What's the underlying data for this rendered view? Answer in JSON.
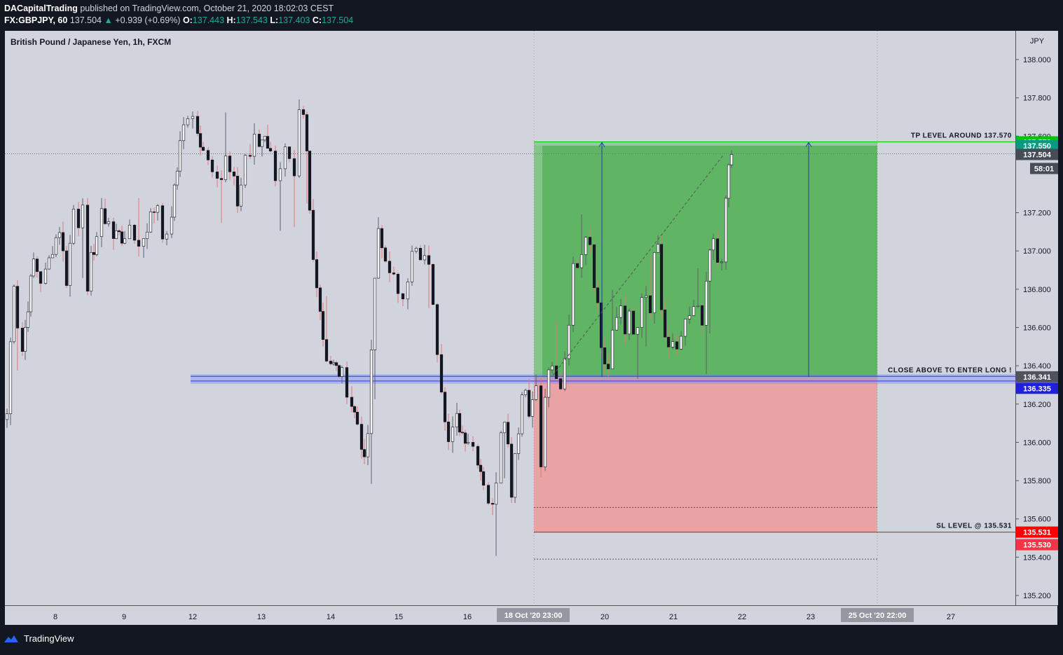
{
  "header": {
    "author": "DACapitalTrading",
    "published": "published on TradingView.com, October 21, 2020 18:02:03 CEST",
    "symbol_tf": "FX:GBPJPY, 60",
    "last": "137.504",
    "change": "+0.939 (+0.69%)",
    "o_label": "O:",
    "o": "137.443",
    "h_label": "H:",
    "h": "137.543",
    "l_label": "L:",
    "l": "137.403",
    "c_label": "C:",
    "c": "137.504"
  },
  "legend": "British Pound / Japanese Yen, 1h, FXCM",
  "price_axis": {
    "currency": "JPY",
    "ticks": [
      "138.000",
      "137.800",
      "137.600",
      "137.200",
      "137.000",
      "136.800",
      "136.600",
      "136.400",
      "136.200",
      "136.000",
      "135.800",
      "135.600",
      "135.400",
      "135.200"
    ]
  },
  "time_axis": {
    "ticks": [
      "8",
      "9",
      "12",
      "13",
      "14",
      "15",
      "16",
      "19",
      "20",
      "21",
      "22",
      "23",
      "26",
      "27"
    ],
    "marker_start": "18 Oct '20  23:00",
    "marker_end": "25 Oct '20  22:00"
  },
  "price_labels": [
    {
      "text": "137.570",
      "color": "#00c800"
    },
    {
      "text": "137.550",
      "color": "#089981"
    },
    {
      "text": "137.504",
      "color": "#474d57"
    },
    {
      "text": "58:01",
      "color": "#474d57"
    },
    {
      "text": "136.341",
      "color": "#50535e"
    },
    {
      "text": "136.335",
      "color": "#1f20d8"
    },
    {
      "text": "135.531",
      "color": "#ff0000"
    },
    {
      "text": "135.530",
      "color": "#f23645"
    }
  ],
  "annotations": {
    "tp": "TP LEVEL AROUND 137.570",
    "entry": "CLOSE ABOVE TO ENTER LONG !",
    "sl": "SL LEVEL @ 135.531"
  },
  "footer": {
    "brand": "TradingView"
  },
  "colors": {
    "up": "#26a69a",
    "down": "#ef5350",
    "bg": "#d1d4dc",
    "profit": "#4caf50",
    "loss": "#ef9a9a",
    "entry_line": "#3f51ff"
  },
  "chart_data": {
    "type": "candlestick",
    "title": "British Pound / Japanese Yen, 1h, FXCM",
    "ylim": [
      135.1,
      138.1
    ],
    "levels": {
      "tp": 137.57,
      "target": 137.55,
      "entry_zone": [
        136.335,
        136.341
      ],
      "stop": 135.531,
      "last": 137.504
    },
    "close_path": [
      [
        0,
        136.15
      ],
      [
        5,
        136.52
      ],
      [
        10,
        136.85
      ],
      [
        15,
        136.62
      ],
      [
        22,
        136.48
      ],
      [
        30,
        136.72
      ],
      [
        38,
        136.95
      ],
      [
        48,
        136.85
      ],
      [
        55,
        136.88
      ],
      [
        65,
        137.02
      ],
      [
        75,
        137.12
      ],
      [
        85,
        136.85
      ],
      [
        95,
        137.22
      ],
      [
        102,
        137.15
      ],
      [
        108,
        137.28
      ],
      [
        115,
        136.75
      ],
      [
        120,
        136.95
      ],
      [
        128,
        137.08
      ],
      [
        135,
        137.18
      ],
      [
        145,
        137.16
      ],
      [
        152,
        137.06
      ],
      [
        160,
        137.12
      ],
      [
        168,
        137.02
      ],
      [
        175,
        137.14
      ],
      [
        182,
        137.08
      ],
      [
        188,
        137.02
      ],
      [
        195,
        137.08
      ],
      [
        205,
        137.18
      ],
      [
        215,
        137.25
      ],
      [
        222,
        137.1
      ],
      [
        228,
        137.05
      ],
      [
        235,
        137.2
      ],
      [
        243,
        137.42
      ],
      [
        247,
        137.6
      ],
      [
        252,
        137.65
      ],
      [
        258,
        137.7
      ],
      [
        265,
        137.68
      ],
      [
        272,
        137.6
      ],
      [
        280,
        137.55
      ],
      [
        287,
        137.48
      ],
      [
        293,
        137.45
      ],
      [
        300,
        137.42
      ],
      [
        306,
        137.38
      ],
      [
        312,
        137.48
      ],
      [
        318,
        137.4
      ],
      [
        324,
        137.35
      ],
      [
        329,
        137.25
      ],
      [
        334,
        137.35
      ],
      [
        340,
        137.5
      ],
      [
        347,
        137.5
      ],
      [
        353,
        137.58
      ],
      [
        360,
        137.55
      ],
      [
        368,
        137.62
      ],
      [
        376,
        137.5
      ],
      [
        383,
        137.4
      ],
      [
        390,
        137.45
      ],
      [
        397,
        137.52
      ],
      [
        403,
        137.45
      ],
      [
        410,
        137.35
      ],
      [
        417,
        137.7
      ],
      [
        423,
        137.68
      ],
      [
        428,
        137.5
      ],
      [
        432,
        137.2
      ],
      [
        437,
        136.95
      ],
      [
        442,
        136.85
      ],
      [
        447,
        136.7
      ],
      [
        451,
        136.55
      ],
      [
        456,
        136.45
      ],
      [
        462,
        136.42
      ],
      [
        470,
        136.38
      ],
      [
        478,
        136.35
      ],
      [
        485,
        136.28
      ],
      [
        492,
        136.2
      ],
      [
        500,
        136.1
      ],
      [
        506,
        136.0
      ],
      [
        510,
        135.88
      ],
      [
        515,
        136.05
      ],
      [
        520,
        136.45
      ],
      [
        525,
        136.85
      ],
      [
        530,
        137.12
      ],
      [
        535,
        137.05
      ],
      [
        540,
        136.92
      ],
      [
        546,
        136.85
      ],
      [
        552,
        136.9
      ],
      [
        558,
        136.82
      ],
      [
        565,
        136.78
      ],
      [
        572,
        136.82
      ],
      [
        578,
        136.98
      ],
      [
        584,
        137.0
      ],
      [
        590,
        136.92
      ],
      [
        596,
        137.0
      ],
      [
        602,
        136.9
      ],
      [
        608,
        136.75
      ],
      [
        614,
        136.5
      ],
      [
        620,
        136.3
      ],
      [
        625,
        136.15
      ],
      [
        630,
        136.0
      ],
      [
        636,
        136.05
      ],
      [
        642,
        136.12
      ],
      [
        650,
        136.05
      ],
      [
        658,
        136.02
      ],
      [
        665,
        135.98
      ],
      [
        672,
        135.92
      ],
      [
        680,
        135.8
      ],
      [
        687,
        135.7
      ],
      [
        693,
        135.65
      ],
      [
        698,
        135.82
      ],
      [
        705,
        136.08
      ],
      [
        710,
        136.15
      ],
      [
        715,
        135.98
      ],
      [
        720,
        135.75
      ],
      [
        725,
        135.95
      ],
      [
        730,
        136.08
      ],
      [
        735,
        136.25
      ],
      [
        740,
        136.28
      ],
      [
        745,
        136.18
      ],
      [
        750,
        136.2
      ],
      [
        755,
        136.3
      ],
      [
        762,
        135.85
      ],
      [
        768,
        136.25
      ],
      [
        773,
        136.34
      ],
      [
        778,
        136.38
      ],
      [
        784,
        136.32
      ],
      [
        790,
        136.3
      ],
      [
        796,
        136.45
      ],
      [
        802,
        136.65
      ],
      [
        808,
        136.9
      ],
      [
        814,
        136.95
      ],
      [
        820,
        137.02
      ],
      [
        826,
        137.1
      ],
      [
        832,
        137.05
      ],
      [
        838,
        136.85
      ],
      [
        843,
        136.72
      ],
      [
        848,
        136.5
      ],
      [
        853,
        136.42
      ],
      [
        858,
        136.38
      ],
      [
        864,
        136.55
      ],
      [
        870,
        136.65
      ],
      [
        876,
        136.72
      ],
      [
        882,
        136.6
      ],
      [
        888,
        136.65
      ],
      [
        894,
        136.55
      ],
      [
        900,
        136.6
      ],
      [
        906,
        136.72
      ],
      [
        912,
        136.75
      ],
      [
        918,
        136.68
      ],
      [
        924,
        136.95
      ],
      [
        929,
        137.0
      ],
      [
        934,
        136.7
      ],
      [
        939,
        136.55
      ],
      [
        944,
        136.48
      ],
      [
        950,
        136.5
      ],
      [
        956,
        136.45
      ],
      [
        962,
        136.55
      ],
      [
        968,
        136.6
      ],
      [
        974,
        136.65
      ],
      [
        980,
        136.68
      ],
      [
        986,
        136.72
      ],
      [
        992,
        136.65
      ],
      [
        998,
        136.8
      ],
      [
        1003,
        137.0
      ],
      [
        1008,
        137.05
      ],
      [
        1014,
        136.95
      ],
      [
        1020,
        136.92
      ],
      [
        1026,
        137.25
      ],
      [
        1030,
        137.45
      ],
      [
        1034,
        137.504
      ]
    ]
  }
}
